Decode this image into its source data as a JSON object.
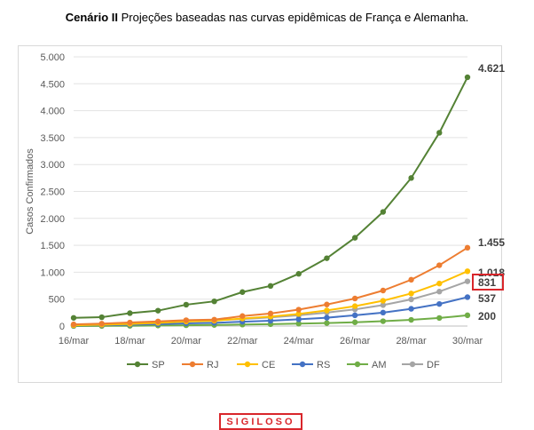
{
  "title": {
    "bold": "Cenário II",
    "rest": " Projeções baseadas nas curvas epidêmicas de França e Alemanha."
  },
  "stamp": "SIGILOSO",
  "chart_data": {
    "type": "line",
    "ylabel": "Casos Confirmados",
    "xlabel": "",
    "ylim": [
      0,
      5000
    ],
    "yticks": [
      0,
      500,
      1000,
      1500,
      2000,
      2500,
      3000,
      3500,
      4000,
      4500,
      5000
    ],
    "ytick_labels": [
      "0",
      "500",
      "1.000",
      "1.500",
      "2.000",
      "2.500",
      "3.000",
      "3.500",
      "4.000",
      "4.500",
      "5.000"
    ],
    "x": [
      "16/mar",
      "17/mar",
      "18/mar",
      "19/mar",
      "20/mar",
      "21/mar",
      "22/mar",
      "23/mar",
      "24/mar",
      "25/mar",
      "26/mar",
      "27/mar",
      "28/mar",
      "29/mar",
      "30/mar"
    ],
    "xtick_labels": [
      "16/mar",
      "",
      "18/mar",
      "",
      "20/mar",
      "",
      "22/mar",
      "",
      "24/mar",
      "",
      "26/mar",
      "",
      "28/mar",
      "",
      "30/mar"
    ],
    "grid": true,
    "legend": "bottom",
    "series": [
      {
        "name": "SP",
        "color": "#548235",
        "values": [
          152,
          164,
          240,
          286,
          397,
          459,
          631,
          745,
          970,
          1260,
          1640,
          2120,
          2750,
          3590,
          4621
        ],
        "end_label": "4.621"
      },
      {
        "name": "RJ",
        "color": "#ed7d31",
        "values": [
          31,
          45,
          65,
          86,
          109,
          119,
          186,
          233,
          305,
          400,
          512,
          660,
          860,
          1130,
          1455
        ],
        "end_label": "1.455"
      },
      {
        "name": "CE",
        "color": "#ffc000",
        "values": [
          15,
          25,
          40,
          60,
          84,
          100,
          140,
          175,
          225,
          290,
          370,
          470,
          605,
          790,
          1018
        ],
        "end_label": "1.018"
      },
      {
        "name": "RS",
        "color": "#4472c4",
        "values": [
          10,
          16,
          25,
          35,
          50,
          60,
          80,
          100,
          125,
          155,
          200,
          250,
          320,
          410,
          537
        ],
        "end_label": "537"
      },
      {
        "name": "AM",
        "color": "#70ad47",
        "values": [
          1,
          2,
          5,
          10,
          15,
          20,
          28,
          35,
          45,
          55,
          70,
          90,
          115,
          150,
          200
        ],
        "end_label": "200"
      },
      {
        "name": "DF",
        "color": "#a5a5a5",
        "values": [
          20,
          30,
          50,
          70,
          95,
          110,
          130,
          160,
          200,
          250,
          310,
          390,
          495,
          640,
          831
        ],
        "end_label": "831"
      }
    ]
  }
}
